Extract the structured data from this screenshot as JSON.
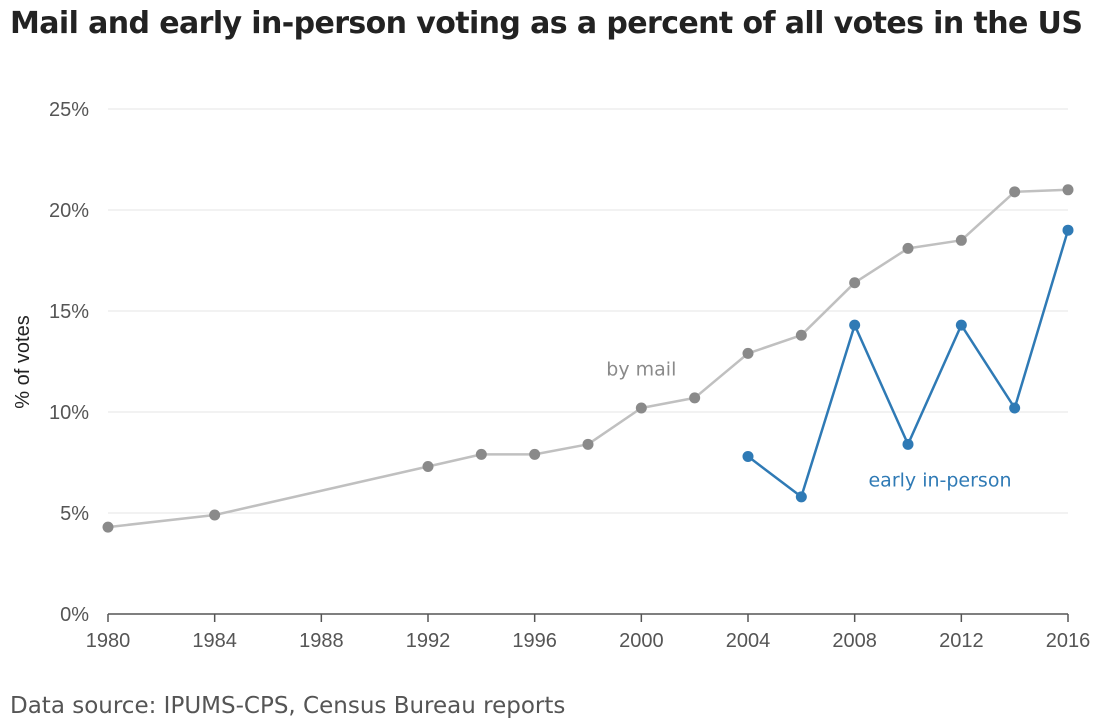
{
  "title": "Mail and early in-person voting as a percent of all votes in the US",
  "source": "Data source: IPUMS-CPS, Census Bureau reports",
  "colors": {
    "mail": "#8a8a8a",
    "mail_line": "#c0c0c0",
    "early": "#2f7ab5",
    "grid": "#e6e6e6",
    "axis": "#555555"
  },
  "chart_data": {
    "type": "line",
    "title": "Mail and early in-person voting as a percent of all votes in the US",
    "xlabel": "",
    "ylabel": "% of votes",
    "xlim": [
      1980,
      2016
    ],
    "ylim": [
      0,
      25
    ],
    "x_ticks": [
      {
        "value": 1980,
        "label": "1980"
      },
      {
        "value": 1984,
        "label": "1984"
      },
      {
        "value": 1988,
        "label": "1988"
      },
      {
        "value": 1992,
        "label": "1992"
      },
      {
        "value": 1996,
        "label": "1996"
      },
      {
        "value": 2000,
        "label": "2000"
      },
      {
        "value": 2004,
        "label": "2004"
      },
      {
        "value": 2008,
        "label": "2008"
      },
      {
        "value": 2012,
        "label": "2012"
      },
      {
        "value": 2016,
        "label": "2016"
      }
    ],
    "y_ticks": [
      {
        "value": 0,
        "label": "0%"
      },
      {
        "value": 5,
        "label": "5%"
      },
      {
        "value": 10,
        "label": "10%"
      },
      {
        "value": 15,
        "label": "15%"
      },
      {
        "value": 20,
        "label": "20%"
      },
      {
        "value": 25,
        "label": "25%"
      }
    ],
    "grid": true,
    "series": [
      {
        "name": "by mail",
        "label_anchor": {
          "x": 2000,
          "y": 11.8
        },
        "points": [
          {
            "x": 1980,
            "y": 4.3
          },
          {
            "x": 1984,
            "y": 4.9
          },
          {
            "x": 1992,
            "y": 7.3
          },
          {
            "x": 1994,
            "y": 7.9
          },
          {
            "x": 1996,
            "y": 7.9
          },
          {
            "x": 1998,
            "y": 8.4
          },
          {
            "x": 2000,
            "y": 10.2
          },
          {
            "x": 2002,
            "y": 10.7
          },
          {
            "x": 2004,
            "y": 12.9
          },
          {
            "x": 2006,
            "y": 13.8
          },
          {
            "x": 2008,
            "y": 16.4
          },
          {
            "x": 2010,
            "y": 18.1
          },
          {
            "x": 2012,
            "y": 18.5
          },
          {
            "x": 2014,
            "y": 20.9
          },
          {
            "x": 2016,
            "y": 21.0
          }
        ]
      },
      {
        "name": "early in-person",
        "label_anchor": {
          "x": 2011.2,
          "y": 6.3
        },
        "points": [
          {
            "x": 2004,
            "y": 7.8
          },
          {
            "x": 2006,
            "y": 5.8
          },
          {
            "x": 2008,
            "y": 14.3
          },
          {
            "x": 2010,
            "y": 8.4
          },
          {
            "x": 2012,
            "y": 14.3
          },
          {
            "x": 2014,
            "y": 10.2
          },
          {
            "x": 2016,
            "y": 19.0
          }
        ]
      }
    ]
  }
}
